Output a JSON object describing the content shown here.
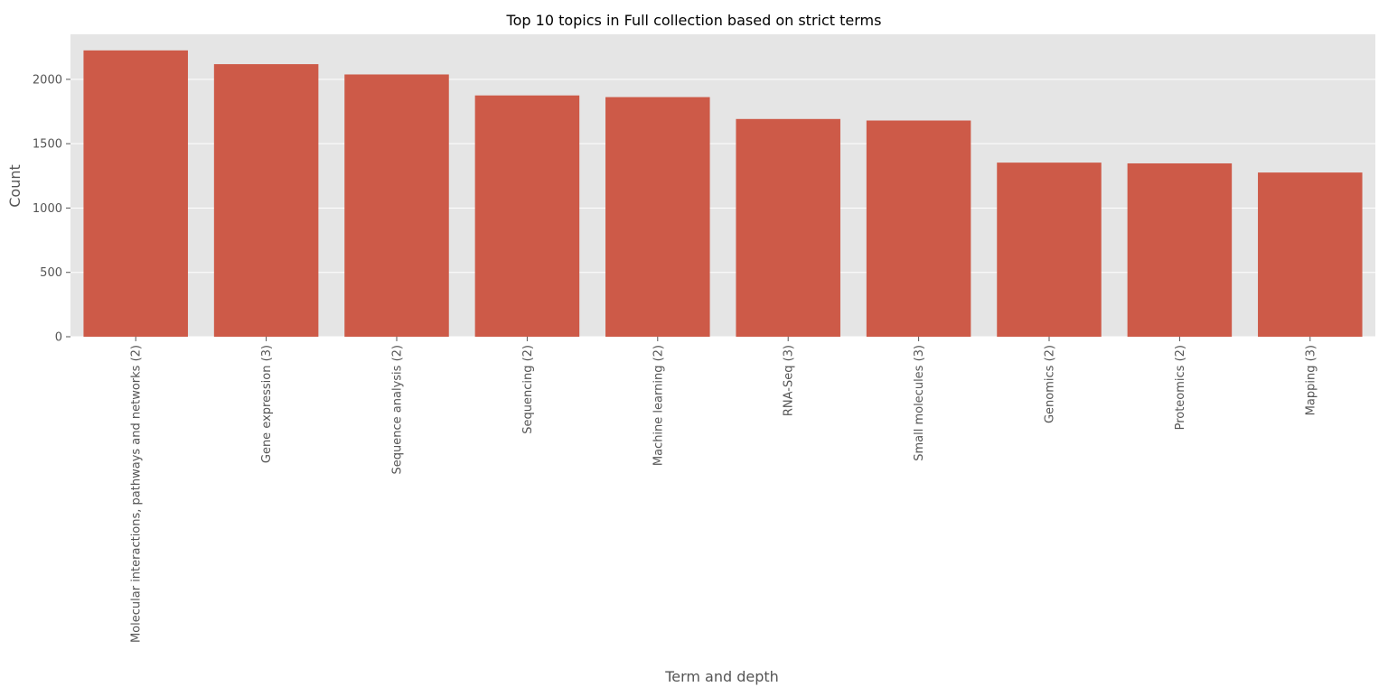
{
  "chart_data": {
    "type": "bar",
    "title": "Top 10 topics in Full collection based on strict terms",
    "xlabel": "Term and depth",
    "ylabel": "Count",
    "categories": [
      "Molecular interactions, pathways and networks (2)",
      "Gene expression (3)",
      "Sequence analysis (2)",
      "Sequencing (2)",
      "Machine learning (2)",
      "RNA-Seq (3)",
      "Small molecules (3)",
      "Genomics (2)",
      "Proteomics (2)",
      "Mapping (3)"
    ],
    "values": [
      2225,
      2118,
      2038,
      1875,
      1862,
      1692,
      1680,
      1353,
      1347,
      1276
    ],
    "yticks": [
      0,
      500,
      1000,
      1500,
      2000
    ],
    "ylim": [
      0,
      2350
    ],
    "grid": true,
    "colors": {
      "bar": "#cd5a48",
      "plot_background": "#e5e5e5",
      "grid": "#ffffff",
      "text": "#555555",
      "title": "#000000"
    }
  }
}
